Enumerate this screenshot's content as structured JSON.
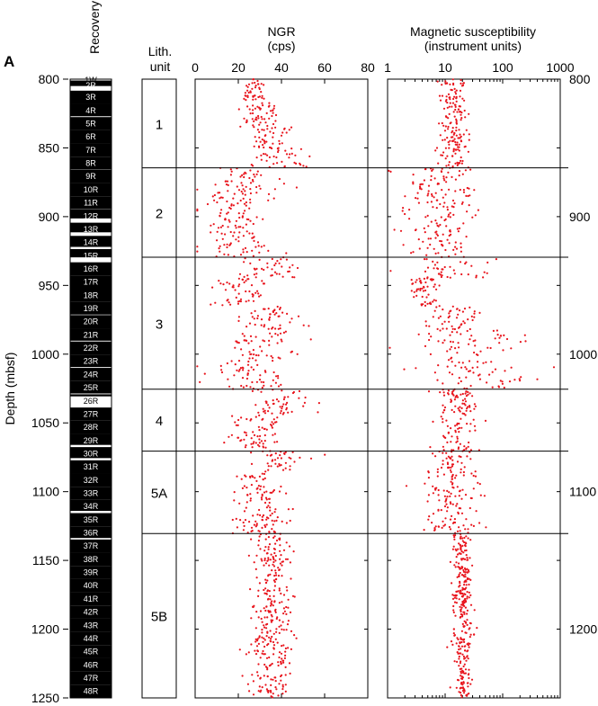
{
  "figure_label": "A",
  "chart_data": {
    "type": "scatter",
    "depth_axis": {
      "label": "Depth (mbsf)",
      "range": [
        800,
        1250
      ],
      "left_ticks": [
        800,
        850,
        900,
        950,
        1000,
        1050,
        1100,
        1150,
        1200,
        1250
      ],
      "right_ticks": [
        800,
        900,
        1000,
        1100,
        1200
      ],
      "inverted": true
    },
    "recovery": {
      "title": "Recovery",
      "cores": [
        {
          "label": "1W",
          "top": 800.0,
          "bottom": 801.0,
          "recovered": 0.0
        },
        {
          "label": "2R",
          "top": 801.0,
          "bottom": 808.4,
          "recovered": 4.0
        },
        {
          "label": "3R",
          "top": 808.4,
          "bottom": 818.0,
          "recovered": 9.6
        },
        {
          "label": "4R",
          "top": 818.0,
          "bottom": 827.6,
          "recovered": 9.0
        },
        {
          "label": "5R",
          "top": 827.6,
          "bottom": 837.2,
          "recovered": 9.6
        },
        {
          "label": "6R",
          "top": 837.2,
          "bottom": 846.8,
          "recovered": 9.6
        },
        {
          "label": "7R",
          "top": 846.8,
          "bottom": 856.4,
          "recovered": 9.6
        },
        {
          "label": "8R",
          "top": 856.4,
          "bottom": 866.0,
          "recovered": 9.4
        },
        {
          "label": "9R",
          "top": 866.0,
          "bottom": 875.6,
          "recovered": 9.6
        },
        {
          "label": "10R",
          "top": 875.6,
          "bottom": 885.2,
          "recovered": 9.6
        },
        {
          "label": "11R",
          "top": 885.2,
          "bottom": 894.8,
          "recovered": 9.4
        },
        {
          "label": "12R",
          "top": 894.8,
          "bottom": 904.4,
          "recovered": 6.5
        },
        {
          "label": "13R",
          "top": 904.4,
          "bottom": 914.0,
          "recovered": 7.0
        },
        {
          "label": "14R",
          "top": 914.0,
          "bottom": 923.6,
          "recovered": 8.0
        },
        {
          "label": "15R",
          "top": 923.6,
          "bottom": 933.2,
          "recovered": 6.0
        },
        {
          "label": "16R",
          "top": 933.2,
          "bottom": 942.8,
          "recovered": 9.6
        },
        {
          "label": "17R",
          "top": 942.8,
          "bottom": 952.4,
          "recovered": 9.6
        },
        {
          "label": "18R",
          "top": 952.4,
          "bottom": 962.0,
          "recovered": 9.6
        },
        {
          "label": "19R",
          "top": 962.0,
          "bottom": 971.6,
          "recovered": 9.2
        },
        {
          "label": "20R",
          "top": 971.6,
          "bottom": 981.2,
          "recovered": 9.6
        },
        {
          "label": "21R",
          "top": 981.2,
          "bottom": 990.8,
          "recovered": 9.0
        },
        {
          "label": "22R",
          "top": 990.8,
          "bottom": 1000.4,
          "recovered": 9.6
        },
        {
          "label": "23R",
          "top": 1000.4,
          "bottom": 1010.0,
          "recovered": 9.0
        },
        {
          "label": "24R",
          "top": 1010.0,
          "bottom": 1019.6,
          "recovered": 9.6
        },
        {
          "label": "25R",
          "top": 1019.6,
          "bottom": 1029.2,
          "recovered": 9.0
        },
        {
          "label": "26R",
          "top": 1029.2,
          "bottom": 1038.8,
          "recovered": 1.5
        },
        {
          "label": "27R",
          "top": 1038.8,
          "bottom": 1048.4,
          "recovered": 9.6
        },
        {
          "label": "28R",
          "top": 1048.4,
          "bottom": 1058.0,
          "recovered": 9.6
        },
        {
          "label": "29R",
          "top": 1058.0,
          "bottom": 1067.6,
          "recovered": 8.0
        },
        {
          "label": "30R",
          "top": 1067.6,
          "bottom": 1077.2,
          "recovered": 8.0
        },
        {
          "label": "31R",
          "top": 1077.2,
          "bottom": 1086.8,
          "recovered": 9.6
        },
        {
          "label": "32R",
          "top": 1086.8,
          "bottom": 1096.4,
          "recovered": 9.6
        },
        {
          "label": "33R",
          "top": 1096.4,
          "bottom": 1106.0,
          "recovered": 9.6
        },
        {
          "label": "34R",
          "top": 1106.0,
          "bottom": 1115.6,
          "recovered": 8.0
        },
        {
          "label": "35R",
          "top": 1115.6,
          "bottom": 1125.2,
          "recovered": 9.6
        },
        {
          "label": "36R",
          "top": 1125.2,
          "bottom": 1134.8,
          "recovered": 8.5
        },
        {
          "label": "37R",
          "top": 1134.8,
          "bottom": 1144.4,
          "recovered": 9.6
        },
        {
          "label": "38R",
          "top": 1144.4,
          "bottom": 1154.0,
          "recovered": 9.6
        },
        {
          "label": "39R",
          "top": 1154.0,
          "bottom": 1163.6,
          "recovered": 9.6
        },
        {
          "label": "40R",
          "top": 1163.6,
          "bottom": 1173.2,
          "recovered": 9.6
        },
        {
          "label": "41R",
          "top": 1173.2,
          "bottom": 1182.8,
          "recovered": 9.6
        },
        {
          "label": "42R",
          "top": 1182.8,
          "bottom": 1192.4,
          "recovered": 9.6
        },
        {
          "label": "43R",
          "top": 1192.4,
          "bottom": 1202.0,
          "recovered": 9.6
        },
        {
          "label": "44R",
          "top": 1202.0,
          "bottom": 1211.6,
          "recovered": 9.6
        },
        {
          "label": "45R",
          "top": 1211.6,
          "bottom": 1221.2,
          "recovered": 9.6
        },
        {
          "label": "46R",
          "top": 1221.2,
          "bottom": 1230.8,
          "recovered": 9.6
        },
        {
          "label": "47R",
          "top": 1230.8,
          "bottom": 1240.4,
          "recovered": 9.6
        },
        {
          "label": "48R",
          "top": 1240.4,
          "bottom": 1250.0,
          "recovered": 9.6
        }
      ]
    },
    "lith_units": {
      "title_line1": "Lith.",
      "title_line2": "unit",
      "units": [
        {
          "label": "1",
          "top": 800,
          "bottom": 864.5
        },
        {
          "label": "2",
          "top": 864.5,
          "bottom": 929.5
        },
        {
          "label": "3",
          "top": 929.5,
          "bottom": 1025.5
        },
        {
          "label": "4",
          "top": 1025.5,
          "bottom": 1070.5
        },
        {
          "label": "5A",
          "top": 1070.5,
          "bottom": 1130.5
        },
        {
          "label": "5B",
          "top": 1130.5,
          "bottom": 1250
        }
      ]
    },
    "ngr": {
      "title_line1": "NGR",
      "title_line2": "(cps)",
      "xlim": [
        0,
        80
      ],
      "ticks": [
        0,
        20,
        40,
        60,
        80
      ],
      "scale": "linear",
      "profile": [
        {
          "top": 800,
          "bottom": 815,
          "mean": 28,
          "sd": 3
        },
        {
          "top": 815,
          "bottom": 835,
          "mean": 30,
          "sd": 4
        },
        {
          "top": 835,
          "bottom": 850,
          "mean": 34,
          "sd": 5
        },
        {
          "top": 850,
          "bottom": 864.5,
          "mean": 40,
          "sd": 6
        },
        {
          "top": 864.5,
          "bottom": 880,
          "mean": 24,
          "sd": 8
        },
        {
          "top": 880,
          "bottom": 910,
          "mean": 18,
          "sd": 7
        },
        {
          "top": 910,
          "bottom": 929.5,
          "mean": 20,
          "sd": 8
        },
        {
          "top": 929.5,
          "bottom": 945,
          "mean": 32,
          "sd": 9
        },
        {
          "top": 945,
          "bottom": 965,
          "mean": 20,
          "sd": 5
        },
        {
          "top": 965,
          "bottom": 985,
          "mean": 35,
          "sd": 8
        },
        {
          "top": 985,
          "bottom": 1025.5,
          "mean": 26,
          "sd": 9
        },
        {
          "top": 1025.5,
          "bottom": 1045,
          "mean": 40,
          "sd": 7
        },
        {
          "top": 1045,
          "bottom": 1070.5,
          "mean": 28,
          "sd": 6
        },
        {
          "top": 1070.5,
          "bottom": 1085,
          "mean": 38,
          "sd": 7
        },
        {
          "top": 1085,
          "bottom": 1130.5,
          "mean": 30,
          "sd": 6
        },
        {
          "top": 1130.5,
          "bottom": 1250,
          "mean": 35,
          "sd": 5
        }
      ]
    },
    "magnetic_susceptibility": {
      "title_line1": "Magnetic susceptibility",
      "title_line2": "(instrument units)",
      "xlim": [
        1,
        1000
      ],
      "ticks": [
        1,
        10,
        100,
        1000
      ],
      "scale": "log",
      "profile": [
        {
          "top": 800,
          "bottom": 864.5,
          "median": 14,
          "spread": 0.12
        },
        {
          "top": 864.5,
          "bottom": 929.5,
          "median": 8,
          "spread": 0.3
        },
        {
          "top": 929.5,
          "bottom": 945,
          "median": 12,
          "spread": 0.35
        },
        {
          "top": 945,
          "bottom": 965,
          "median": 4,
          "spread": 0.15
        },
        {
          "top": 965,
          "bottom": 985,
          "median": 18,
          "spread": 0.25
        },
        {
          "top": 985,
          "bottom": 1025.5,
          "median": 25,
          "spread": 0.55
        },
        {
          "top": 1025.5,
          "bottom": 1070.5,
          "median": 16,
          "spread": 0.2
        },
        {
          "top": 1070.5,
          "bottom": 1130.5,
          "median": 12,
          "spread": 0.25
        },
        {
          "top": 1130.5,
          "bottom": 1250,
          "median": 20,
          "spread": 0.08
        }
      ]
    }
  }
}
